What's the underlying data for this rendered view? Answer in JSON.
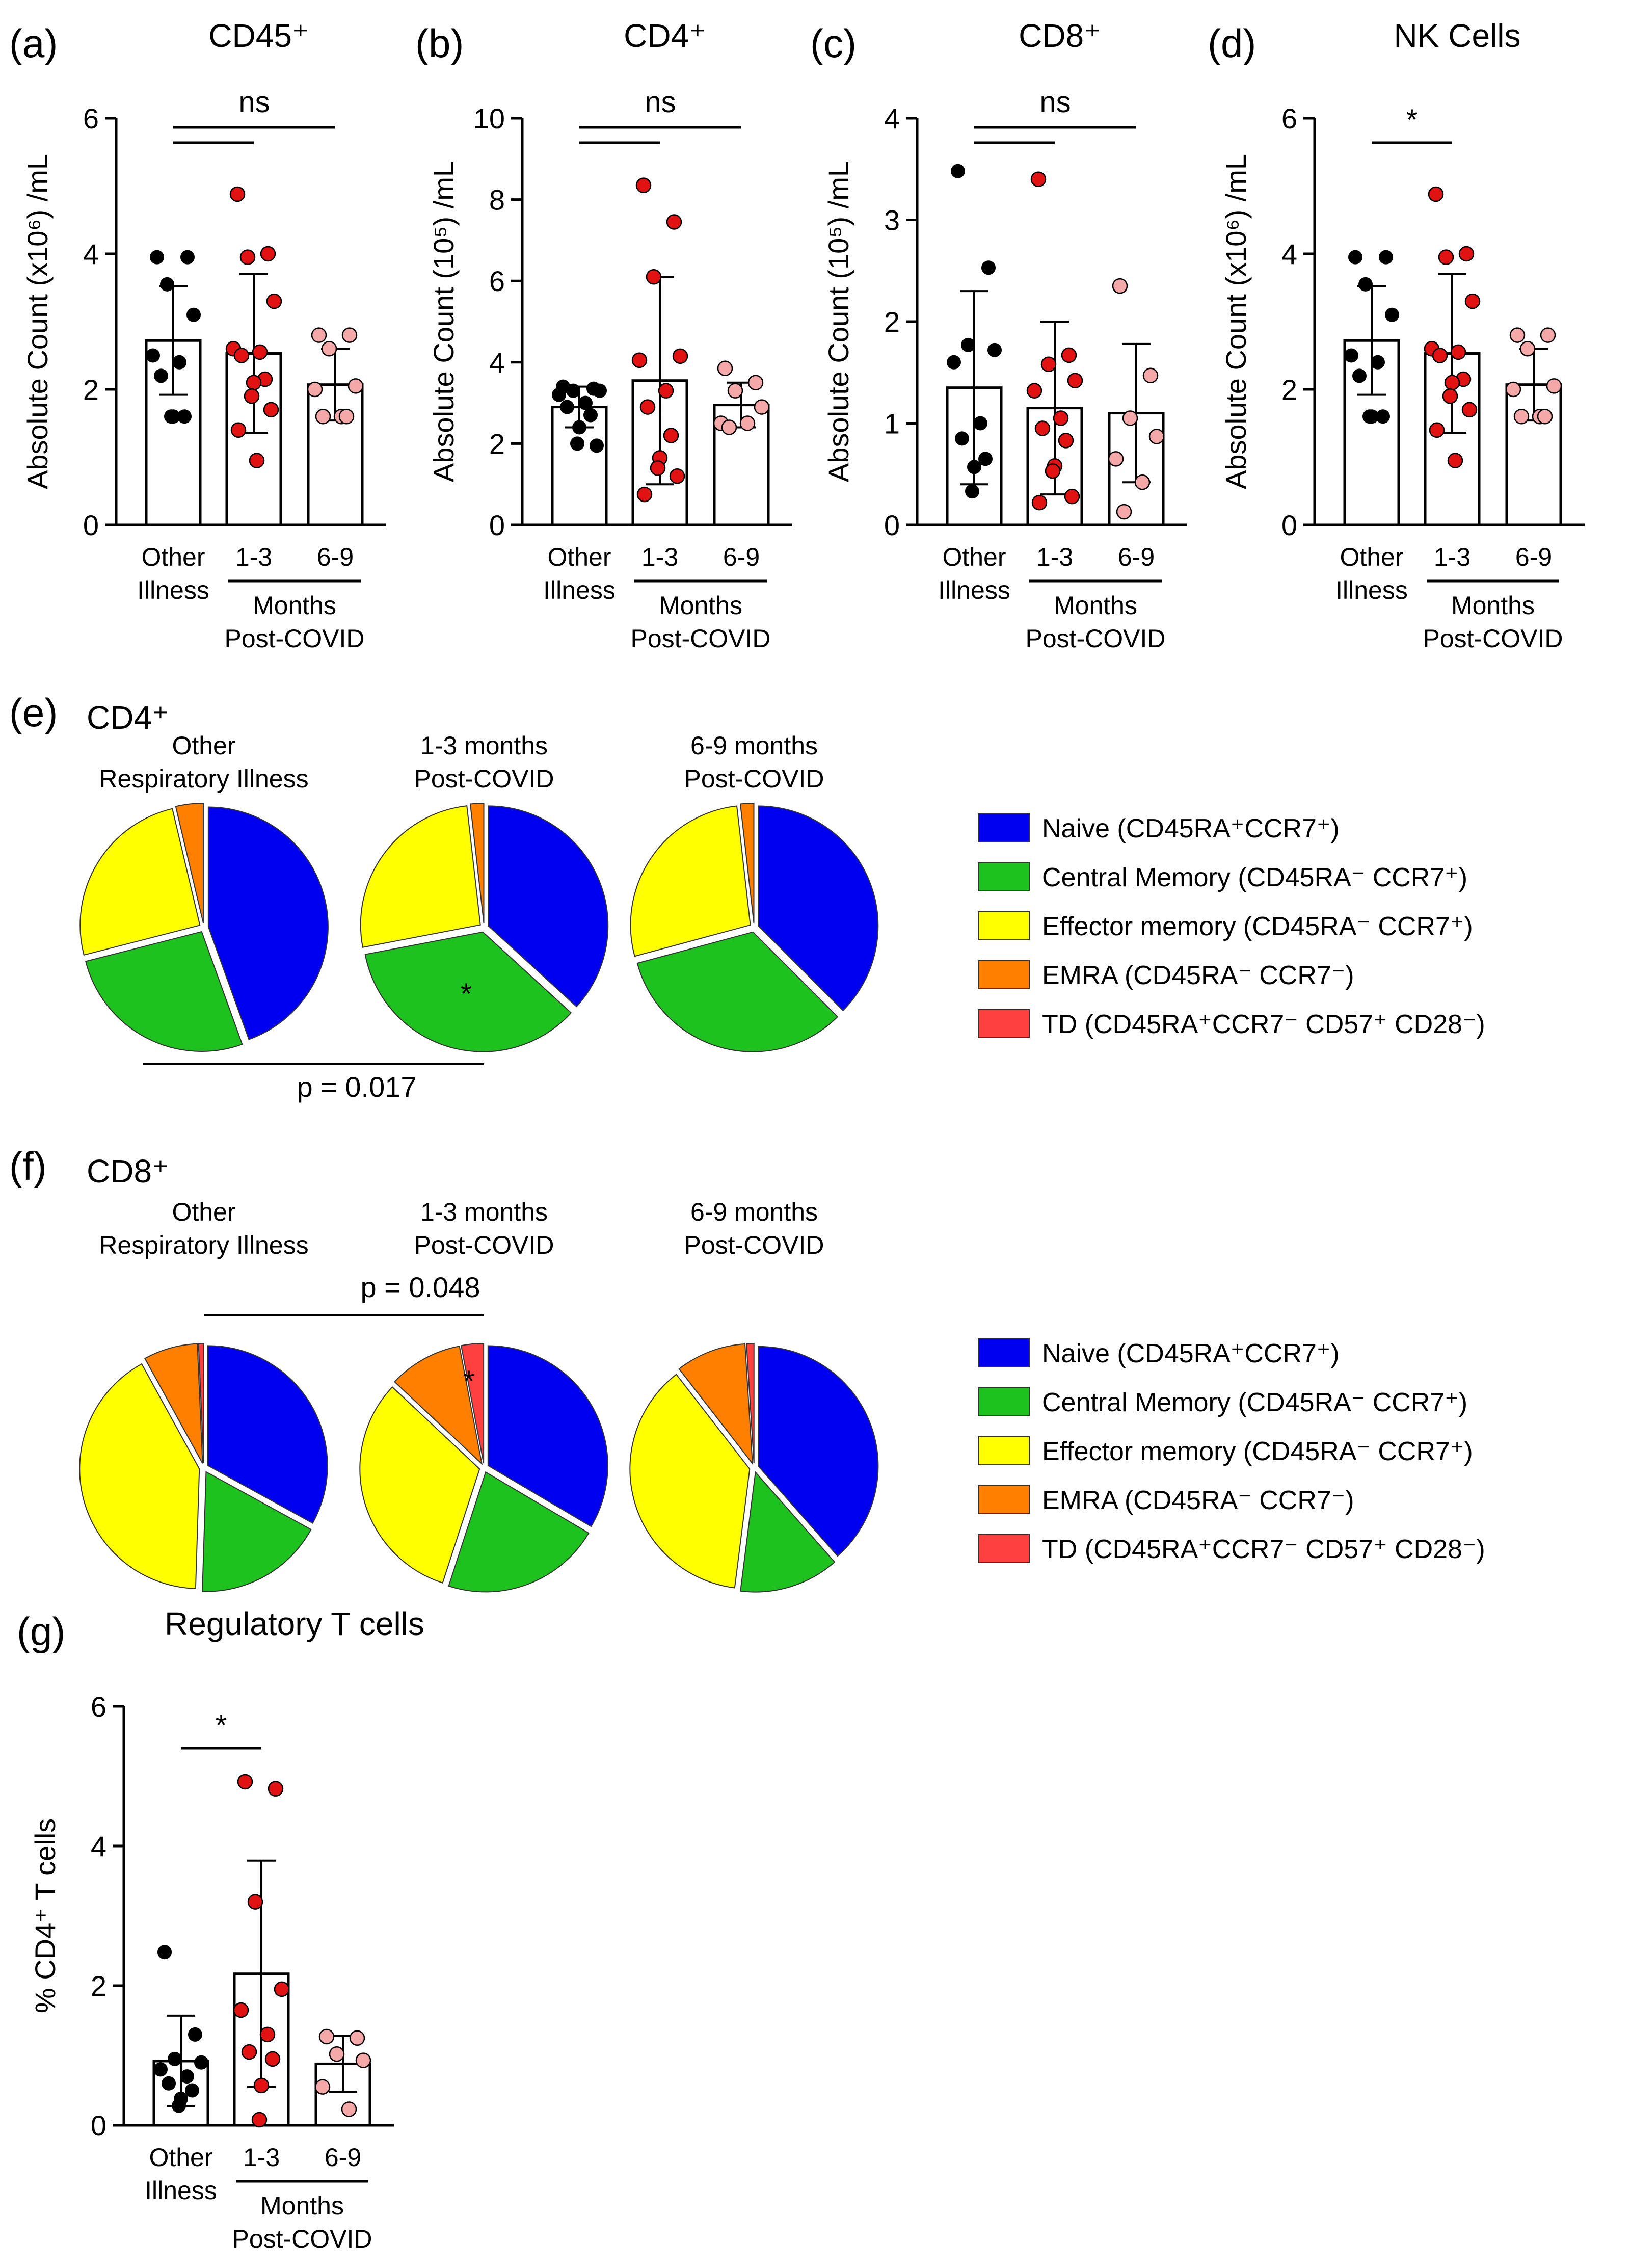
{
  "colors": {
    "other_illness": "#000000",
    "m1_3": "#e01212",
    "m6_9": "#f4a8a8",
    "naive": "#0000f0",
    "central": "#1ec21e",
    "effector": "#ffff00",
    "emra": "#ff8000",
    "td": "#ff4040"
  },
  "group_labels": {
    "other_line1": "Other",
    "other_line2": "Illness",
    "m1_3": "1-3",
    "m6_9": "6-9",
    "months": "Months",
    "post_covid": "Post-COVID"
  },
  "chart_data": [
    {
      "id": "a",
      "panel_label": "(a)",
      "type": "bar",
      "title": "CD45⁺",
      "ylabel": "Absolute Count (x10⁶) /mL",
      "ylim": [
        0,
        6
      ],
      "yticks": [
        "0",
        "2",
        "4",
        "6"
      ],
      "significance": "ns",
      "categories": [
        "Other Illness",
        "1-3",
        "6-9"
      ],
      "means": [
        2.72,
        2.53,
        2.07
      ],
      "sd": [
        0.8,
        1.17,
        0.53
      ],
      "points": [
        [
          3.95,
          3.95,
          3.55,
          3.1,
          2.5,
          2.4,
          2.2,
          1.6,
          1.6,
          1.6
        ],
        [
          4.88,
          4.0,
          3.95,
          3.3,
          2.6,
          2.55,
          2.5,
          2.15,
          2.1,
          1.9,
          1.7,
          1.4,
          0.95
        ],
        [
          2.8,
          2.8,
          2.6,
          2.05,
          2.0,
          1.6,
          1.6,
          1.6
        ]
      ]
    },
    {
      "id": "b",
      "panel_label": "(b)",
      "type": "bar",
      "title": "CD4⁺",
      "ylabel": "Absolute Count (10⁵) /mL",
      "ylim": [
        0,
        10
      ],
      "yticks": [
        "0",
        "2",
        "4",
        "6",
        "8",
        "10"
      ],
      "significance": "ns",
      "categories": [
        "Other Illness",
        "1-3",
        "6-9"
      ],
      "means": [
        2.9,
        3.55,
        2.95
      ],
      "sd": [
        0.5,
        2.55,
        0.55
      ],
      "points": [
        [
          3.4,
          3.35,
          3.3,
          3.3,
          3.2,
          3.0,
          2.9,
          2.7,
          2.4,
          2.0,
          1.95
        ],
        [
          8.35,
          7.45,
          6.1,
          4.15,
          4.05,
          3.3,
          2.9,
          2.2,
          1.65,
          1.4,
          1.2,
          0.75
        ],
        [
          3.85,
          3.5,
          3.3,
          2.9,
          2.5,
          2.5,
          2.4
        ]
      ]
    },
    {
      "id": "c",
      "panel_label": "(c)",
      "type": "bar",
      "title": "CD8⁺",
      "ylabel": "Absolute Count (10⁵) /mL",
      "ylim": [
        0,
        4
      ],
      "yticks": [
        "0",
        "1",
        "2",
        "3",
        "4"
      ],
      "significance": "ns",
      "categories": [
        "Other Illness",
        "1-3",
        "6-9"
      ],
      "means": [
        1.35,
        1.15,
        1.1
      ],
      "sd": [
        0.95,
        0.85,
        0.68
      ],
      "points": [
        [
          3.48,
          2.53,
          1.77,
          1.72,
          1.6,
          1.0,
          0.85,
          0.65,
          0.57,
          0.33
        ],
        [
          3.4,
          1.67,
          1.58,
          1.42,
          1.32,
          1.05,
          0.95,
          0.83,
          0.58,
          0.53,
          0.28,
          0.22
        ],
        [
          2.35,
          1.47,
          1.05,
          0.87,
          0.65,
          0.42,
          0.13
        ]
      ]
    },
    {
      "id": "d",
      "panel_label": "(d)",
      "type": "bar",
      "title": "NK Cells",
      "ylabel": "Absolute Count (x10⁶) /mL",
      "ylim": [
        0,
        6
      ],
      "yticks": [
        "0",
        "2",
        "4",
        "6"
      ],
      "significance": "*",
      "categories": [
        "Other Illness",
        "1-3",
        "6-9"
      ],
      "means": [
        2.72,
        2.53,
        2.07
      ],
      "sd": [
        0.8,
        1.17,
        0.53
      ],
      "points": [
        [
          3.95,
          3.95,
          3.55,
          3.1,
          2.5,
          2.4,
          2.2,
          1.6,
          1.6,
          1.6
        ],
        [
          4.88,
          4.0,
          3.95,
          3.3,
          2.6,
          2.55,
          2.5,
          2.15,
          2.1,
          1.9,
          1.7,
          1.4,
          0.95
        ],
        [
          2.8,
          2.8,
          2.6,
          2.05,
          2.0,
          1.6,
          1.6,
          1.6
        ]
      ]
    },
    {
      "id": "e",
      "panel_label": "(e)",
      "type": "pie",
      "title": "CD4⁺",
      "legend": [
        "Naive (CD45RA⁺CCR7⁺)",
        "Central Memory (CD45RA⁻ CCR7⁺)",
        "Effector memory (CD45RA⁻ CCR7⁺)",
        "EMRA (CD45RA⁻ CCR7⁻)",
        "TD (CD45RA⁺CCR7⁻ CD57⁺ CD28⁻)"
      ],
      "pies": [
        {
          "title_lines": [
            "Other",
            "Respiratory Illness"
          ],
          "values": [
            44.5,
            26.5,
            25.3,
            3.7,
            0
          ],
          "marker": ""
        },
        {
          "title_lines": [
            "1-3 months",
            "Post-COVID"
          ],
          "values": [
            36.8,
            35.2,
            26.2,
            1.8,
            0
          ],
          "marker": "*"
        },
        {
          "title_lines": [
            "6-9 months",
            "Post-COVID"
          ],
          "values": [
            37.5,
            33.3,
            27.4,
            1.8,
            0
          ],
          "marker": ""
        }
      ],
      "comparison": "p = 0.017"
    },
    {
      "id": "f",
      "panel_label": "(f)",
      "type": "pie",
      "title": "CD8⁺",
      "legend": [
        "Naive (CD45RA⁺CCR7⁺)",
        "Central Memory (CD45RA⁻ CCR7⁺)",
        "Effector memory (CD45RA⁻ CCR7⁺)",
        "EMRA (CD45RA⁻ CCR7⁻)",
        "TD (CD45RA⁺CCR7⁻ CD57⁺ CD28⁻)"
      ],
      "pies": [
        {
          "title_lines": [
            "Other",
            "Respiratory Illness"
          ],
          "values": [
            33.0,
            17.5,
            41.5,
            7.3,
            0.7
          ],
          "marker": ""
        },
        {
          "title_lines": [
            "1-3 months",
            "Post-COVID"
          ],
          "values": [
            33.5,
            21.5,
            32.0,
            10.0,
            3.0
          ],
          "marker": "*"
        },
        {
          "title_lines": [
            "6-9 months",
            "Post-COVID"
          ],
          "values": [
            38.5,
            13.5,
            37.5,
            9.5,
            1.0
          ],
          "marker": ""
        }
      ],
      "comparison": "p = 0.048"
    },
    {
      "id": "g",
      "panel_label": "(g)",
      "type": "bar",
      "title": "Regulatory T cells",
      "ylabel": "% CD4⁺ T cells",
      "ylim": [
        0,
        6
      ],
      "yticks": [
        "0",
        "2",
        "4",
        "6"
      ],
      "significance": "*",
      "categories": [
        "Other Illness",
        "1-3",
        "6-9"
      ],
      "means": [
        0.92,
        2.17,
        0.88
      ],
      "sd": [
        0.65,
        1.62,
        0.4
      ],
      "points": [
        [
          2.48,
          1.3,
          0.95,
          0.9,
          0.8,
          0.7,
          0.6,
          0.5,
          0.38,
          0.28
        ],
        [
          4.92,
          4.82,
          3.2,
          1.95,
          1.65,
          1.3,
          1.05,
          0.95,
          0.57,
          0.08
        ],
        [
          1.27,
          1.25,
          1.02,
          0.93,
          0.55,
          0.23
        ]
      ]
    }
  ]
}
